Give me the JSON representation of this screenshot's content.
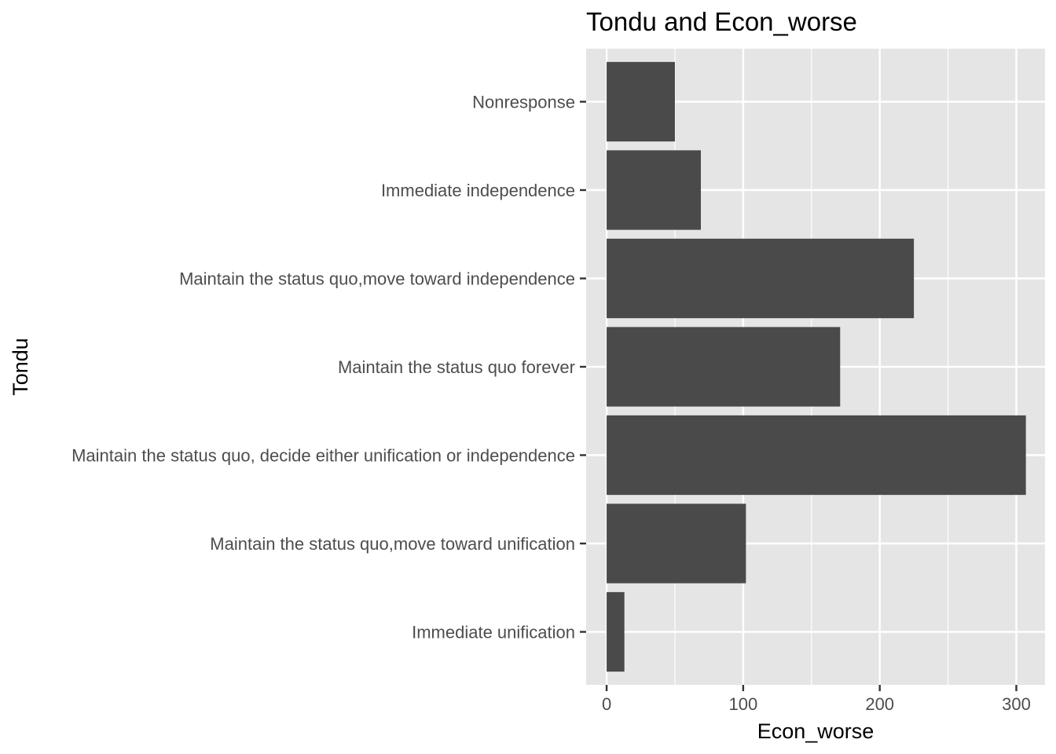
{
  "chart_data": {
    "type": "bar",
    "orientation": "horizontal",
    "title": "Tondu and  Econ_worse",
    "xlabel": "Econ_worse",
    "ylabel": "Tondu",
    "categories": [
      "Immediate unification",
      "Maintain the status quo,move toward unification",
      "Maintain the status quo, decide either unification or independence",
      "Maintain the status quo forever",
      "Maintain the status quo,move toward independence",
      "Immediate independence",
      "Nonresponse"
    ],
    "values": [
      13,
      102,
      307,
      171,
      225,
      69,
      50
    ],
    "xlim": [
      -15,
      321
    ],
    "xticks": [
      0,
      100,
      200,
      300
    ],
    "grid": true,
    "legend": "none",
    "colors": {
      "bar": "#4a4a4a",
      "panel": "#e5e5e5",
      "grid": "#ffffff"
    }
  }
}
